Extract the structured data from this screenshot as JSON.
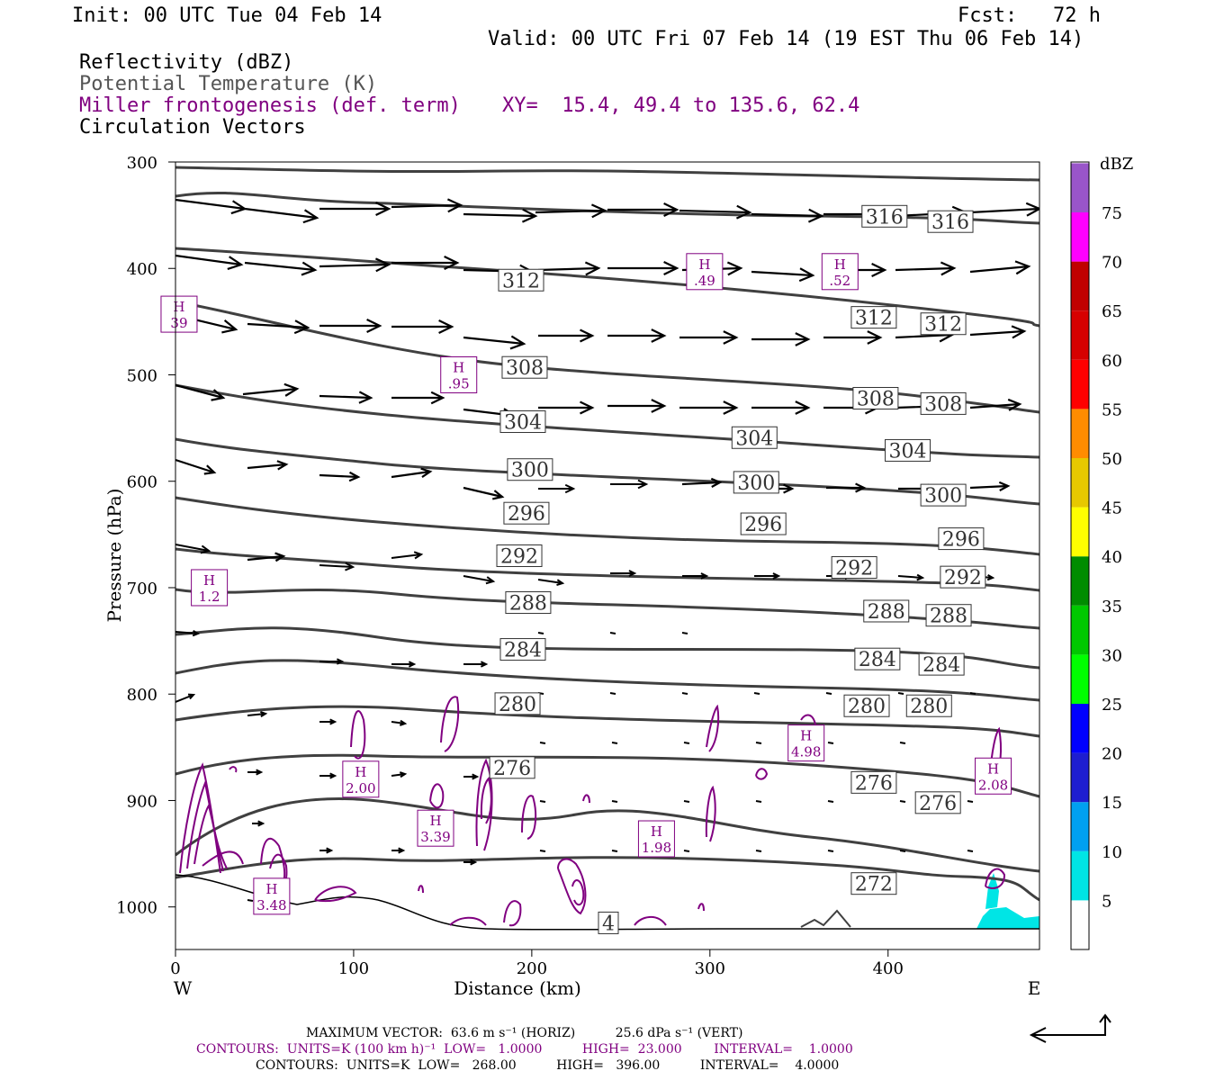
{
  "header": {
    "init": "Init: 00 UTC Tue 04 Feb 14",
    "fcst": "Fcst:   72 h",
    "valid": "Valid: 00 UTC Fri 07 Feb 14 (19 EST Thu 06 Feb 14)",
    "field1": "Reflectivity (dBZ)",
    "field2": "Potential Temperature (K)",
    "field3": "Miller frontogenesis (def. term)",
    "xy": "XY=  15.4, 49.4 to 135.6, 62.4",
    "field4": "Circulation Vectors"
  },
  "colors": {
    "theta": "#404040",
    "fronto": "#800080",
    "refl_low": "#00e5e5",
    "vector": "#000000"
  },
  "chart_data": {
    "type": "cross-section",
    "xlabel": "Distance (km)",
    "ylabel": "Pressure (hPa)",
    "xlim": [
      0,
      485
    ],
    "ylim": [
      300,
      1040
    ],
    "x_ticks": [
      0,
      100,
      200,
      300,
      400
    ],
    "y_ticks": [
      300,
      400,
      500,
      600,
      700,
      800,
      900,
      1000
    ],
    "x_left_label": "W",
    "x_right_label": "E",
    "theta_labels": [
      {
        "text": "316",
        "x": 398,
        "p": 351
      },
      {
        "text": "316",
        "x": 435,
        "p": 356
      },
      {
        "text": "312",
        "x": 194,
        "p": 411
      },
      {
        "text": "312",
        "x": 392,
        "p": 446
      },
      {
        "text": "312",
        "x": 431,
        "p": 452
      },
      {
        "text": "308",
        "x": 196,
        "p": 493
      },
      {
        "text": "308",
        "x": 393,
        "p": 522
      },
      {
        "text": "308",
        "x": 431,
        "p": 527
      },
      {
        "text": "304",
        "x": 195,
        "p": 544
      },
      {
        "text": "304",
        "x": 325,
        "p": 559
      },
      {
        "text": "304",
        "x": 411,
        "p": 571
      },
      {
        "text": "300",
        "x": 199,
        "p": 589
      },
      {
        "text": "300",
        "x": 326,
        "p": 601
      },
      {
        "text": "300",
        "x": 431,
        "p": 613
      },
      {
        "text": "296",
        "x": 197,
        "p": 630
      },
      {
        "text": "296",
        "x": 330,
        "p": 640
      },
      {
        "text": "296",
        "x": 441,
        "p": 654
      },
      {
        "text": "292",
        "x": 193,
        "p": 670
      },
      {
        "text": "292",
        "x": 381,
        "p": 681
      },
      {
        "text": "292",
        "x": 442,
        "p": 690
      },
      {
        "text": "288",
        "x": 198,
        "p": 714
      },
      {
        "text": "288",
        "x": 399,
        "p": 722
      },
      {
        "text": "288",
        "x": 434,
        "p": 726
      },
      {
        "text": "284",
        "x": 195,
        "p": 758
      },
      {
        "text": "284",
        "x": 394,
        "p": 767
      },
      {
        "text": "284",
        "x": 430,
        "p": 772
      },
      {
        "text": "280",
        "x": 192,
        "p": 809
      },
      {
        "text": "280",
        "x": 388,
        "p": 811
      },
      {
        "text": "280",
        "x": 423,
        "p": 811
      },
      {
        "text": "276",
        "x": 189,
        "p": 869
      },
      {
        "text": "276",
        "x": 392,
        "p": 883
      },
      {
        "text": "276",
        "x": 428,
        "p": 902
      },
      {
        "text": "272",
        "x": 392,
        "p": 978
      },
      {
        "text": "4",
        "x": 243,
        "p": 1015
      }
    ],
    "fronto_highs": [
      {
        "h": "H",
        "v": "39",
        "x": 2,
        "p": 443
      },
      {
        "h": "H",
        "v": ".95",
        "x": 159,
        "p": 500
      },
      {
        "h": "H",
        "v": ".49",
        "x": 297,
        "p": 403
      },
      {
        "h": "H",
        "v": ".52",
        "x": 373,
        "p": 403
      },
      {
        "h": "H",
        "v": "1.2",
        "x": 19,
        "p": 700
      },
      {
        "h": "H",
        "v": "2.00",
        "x": 104,
        "p": 880
      },
      {
        "h": "H",
        "v": "3.39",
        "x": 146,
        "p": 926
      },
      {
        "h": "H",
        "v": "1.98",
        "x": 270,
        "p": 936
      },
      {
        "h": "H",
        "v": "4.98",
        "x": 354,
        "p": 846
      },
      {
        "h": "H",
        "v": "2.08",
        "x": 459,
        "p": 877
      },
      {
        "h": "H",
        "v": "3.48",
        "x": 54,
        "p": 990
      }
    ],
    "colorbar": {
      "unit": "dBZ",
      "levels": [
        "5",
        "10",
        "15",
        "20",
        "25",
        "30",
        "35",
        "40",
        "45",
        "50",
        "55",
        "60",
        "65",
        "70",
        "75"
      ],
      "colors": [
        "#00e5e5",
        "#00a0f0",
        "#1e1ed0",
        "#0000ff",
        "#00ff00",
        "#00c800",
        "#008c00",
        "#ffff00",
        "#e6c800",
        "#ff8c00",
        "#ff0000",
        "#d60000",
        "#c00000",
        "#ff00ff",
        "#9955c9"
      ]
    }
  },
  "footer": {
    "max_vector": "MAXIMUM VECTOR:  63.6 m s⁻¹ (HORIZ)          25.6 dPa s⁻¹ (VERT)",
    "contours1": "CONTOURS:  UNITS=K (100 km h)⁻¹  LOW=   1.0000          HIGH=  23.000        INTERVAL=    1.0000",
    "contours2": "CONTOURS:  UNITS=K  LOW=   268.00          HIGH=   396.00          INTERVAL=    4.0000"
  }
}
